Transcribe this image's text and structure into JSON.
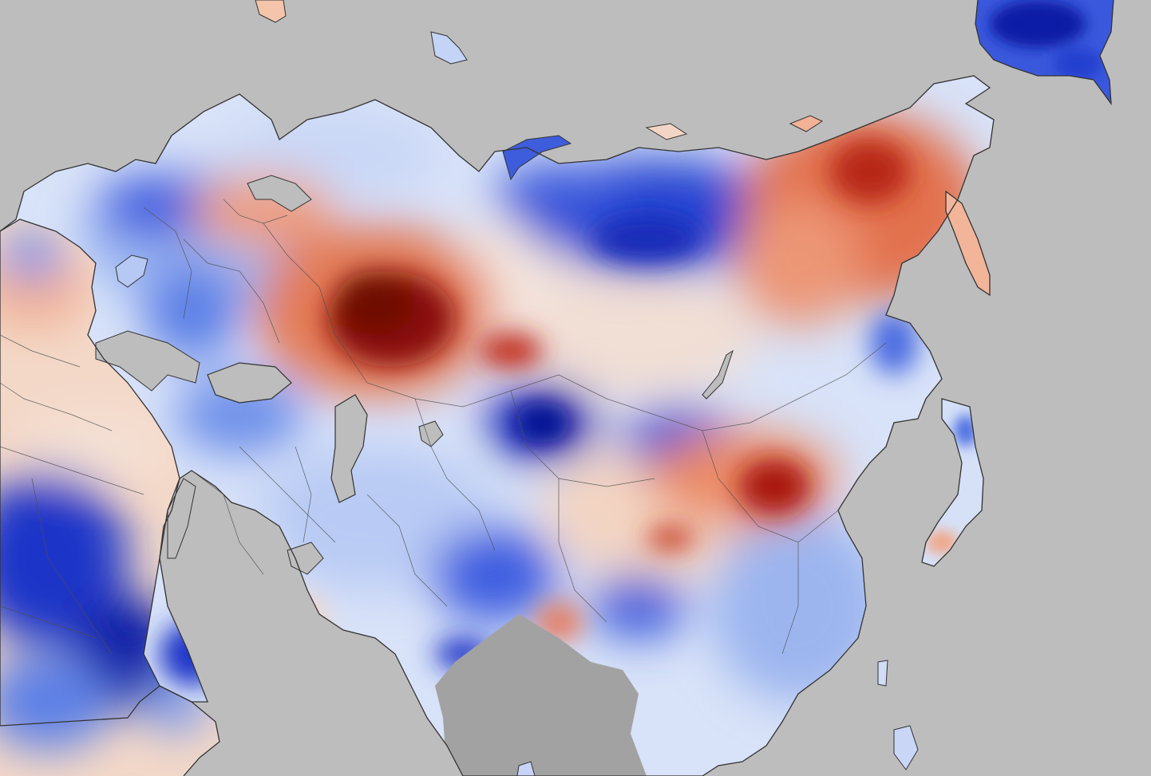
{
  "map": {
    "type": "land-surface-temperature-anomaly",
    "region": "Eurasia",
    "labels": [],
    "colors": {
      "ocean": "#bdbdbd",
      "no_data_land": "#9e9e9e",
      "coastline": "#333333",
      "border": "#4d4d4d",
      "anomaly_scale": [
        "#08129a",
        "#1f3fd8",
        "#6f93ec",
        "#c6d6f6",
        "#f7f2ef",
        "#f6c3a8",
        "#ec7f58",
        "#c9281b",
        "#7d0a05"
      ]
    },
    "features": [
      "warm-anomaly-western-russia",
      "warm-anomaly-eastern-siberia",
      "warm-anomaly-mongolia-northern-china",
      "cold-anomaly-central-siberia",
      "cold-anomaly-kazakhstan",
      "cold-anomaly-east-africa",
      "cold-anomaly-scandinavia",
      "cold-anomaly-alaska"
    ]
  }
}
